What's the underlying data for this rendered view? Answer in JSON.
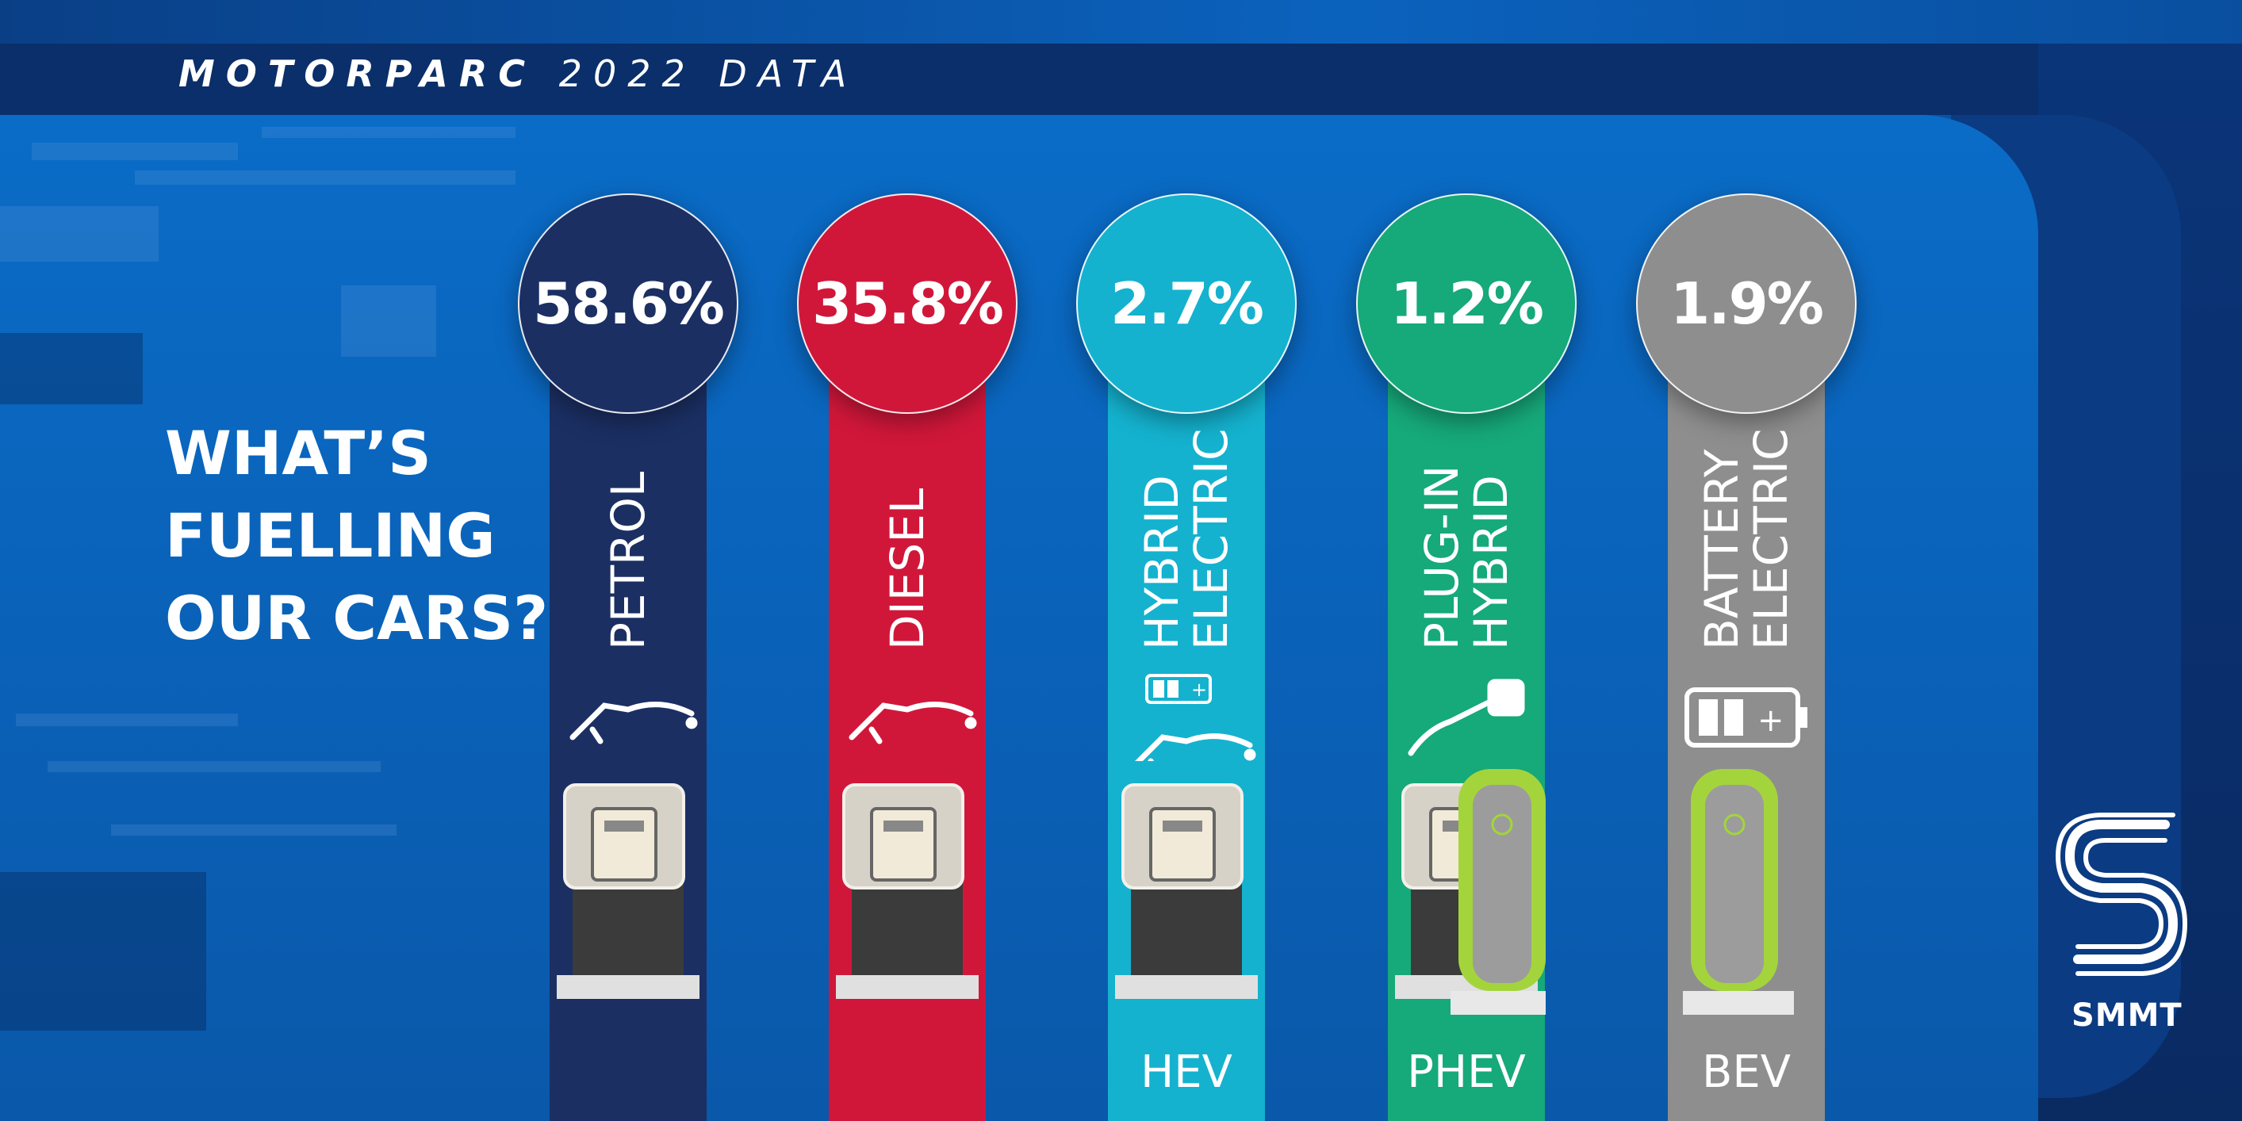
{
  "header": {
    "title_bold": "MOTORPARC",
    "title_light": "2022 DATA"
  },
  "headline": {
    "lines": [
      "WHAT’S",
      "FUELLING",
      "OUR CARS?"
    ]
  },
  "logo": {
    "text": "SMMT"
  },
  "colors": {
    "petrol": "#1b2f63",
    "diesel": "#d0173a",
    "hybrid": "#14b2cf",
    "plugin": "#16a97a",
    "battery": "#8e8e8e"
  },
  "chart_data": {
    "type": "bar",
    "categories": [
      "PETROL",
      "DIESEL",
      "HYBRID ELECTRIC",
      "PLUG-IN HYBRID",
      "BATTERY ELECTRIC"
    ],
    "values": [
      58.6,
      35.8,
      2.7,
      1.2,
      1.9
    ],
    "unit": "%",
    "title": "MOTORPARC 2022 DATA",
    "columns": [
      {
        "value_label": "58.6%",
        "label_lines": [
          "PETROL"
        ],
        "abbr": "",
        "icon": "fuel-nozzle-icon",
        "color": "#1b2f63"
      },
      {
        "value_label": "35.8%",
        "label_lines": [
          "DIESEL"
        ],
        "abbr": "",
        "icon": "fuel-nozzle-icon",
        "color": "#d0173a"
      },
      {
        "value_label": "2.7%",
        "label_lines": [
          "HYBRID",
          "ELECTRIC"
        ],
        "abbr": "HEV",
        "icon": "battery-nozzle-icon",
        "color": "#14b2cf"
      },
      {
        "value_label": "1.2%",
        "label_lines": [
          "PLUG-IN",
          "HYBRID"
        ],
        "abbr": "PHEV",
        "icon": "charging-plug-icon",
        "color": "#16a97a"
      },
      {
        "value_label": "1.9%",
        "label_lines": [
          "BATTERY",
          "ELECTRIC"
        ],
        "abbr": "BEV",
        "icon": "battery-icon",
        "color": "#8e8e8e"
      }
    ]
  }
}
